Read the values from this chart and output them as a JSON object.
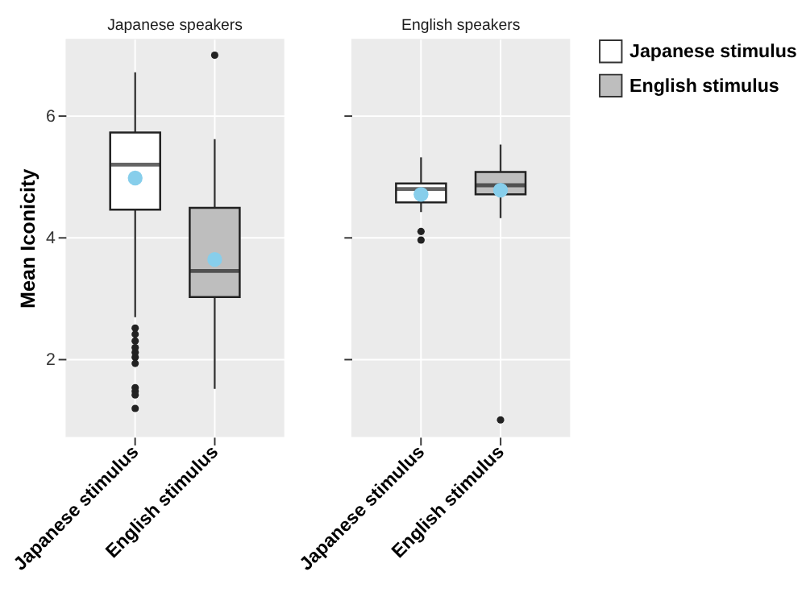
{
  "chart_data": [
    {
      "type": "box",
      "title": "Japanese speakers",
      "ylabel": "Mean Iconicity",
      "categories": [
        "Japanese stimulus",
        "English stimulus"
      ],
      "series": [
        {
          "name": "Japanese stimulus",
          "color": "#ffffff",
          "boxes": [
            {
              "low": 2.69,
              "q1": 4.46,
              "median": 5.2,
              "q3": 5.73,
              "high": 6.72,
              "mean": 4.98,
              "outliers": [
                2.51,
                2.41,
                2.3,
                2.19,
                2.11,
                2.03,
                1.93,
                1.53,
                1.47,
                1.41,
                1.19
              ]
            },
            null
          ]
        },
        {
          "name": "English stimulus",
          "color": "#bebebe",
          "boxes": [
            null,
            {
              "low": 1.51,
              "q1": 3.02,
              "median": 3.45,
              "q3": 4.49,
              "high": 5.62,
              "mean": 3.64,
              "outliers": [
                7.0
              ]
            }
          ]
        }
      ],
      "ylim": [
        0.72,
        7.27
      ],
      "yticks": [
        2,
        4,
        6
      ],
      "grid": true,
      "legend": "right"
    },
    {
      "type": "box",
      "title": "English speakers",
      "categories": [
        "Japanese stimulus",
        "English stimulus"
      ],
      "series": [
        {
          "name": "Japanese stimulus",
          "color": "#ffffff",
          "boxes": [
            {
              "low": 4.42,
              "q1": 4.58,
              "median": 4.8,
              "q3": 4.89,
              "high": 5.32,
              "mean": 4.71,
              "outliers": [
                4.1,
                3.96
              ]
            },
            null
          ]
        },
        {
          "name": "English stimulus",
          "color": "#bebebe",
          "boxes": [
            null,
            {
              "low": 4.32,
              "q1": 4.71,
              "median": 4.86,
              "q3": 5.08,
              "high": 5.53,
              "mean": 4.78,
              "outliers": [
                1.0
              ]
            }
          ]
        }
      ],
      "ylim": [
        0.72,
        7.27
      ],
      "yticks": [
        2,
        4,
        6
      ],
      "grid": true,
      "tick_labels": "x",
      "legend": "right"
    }
  ]
}
